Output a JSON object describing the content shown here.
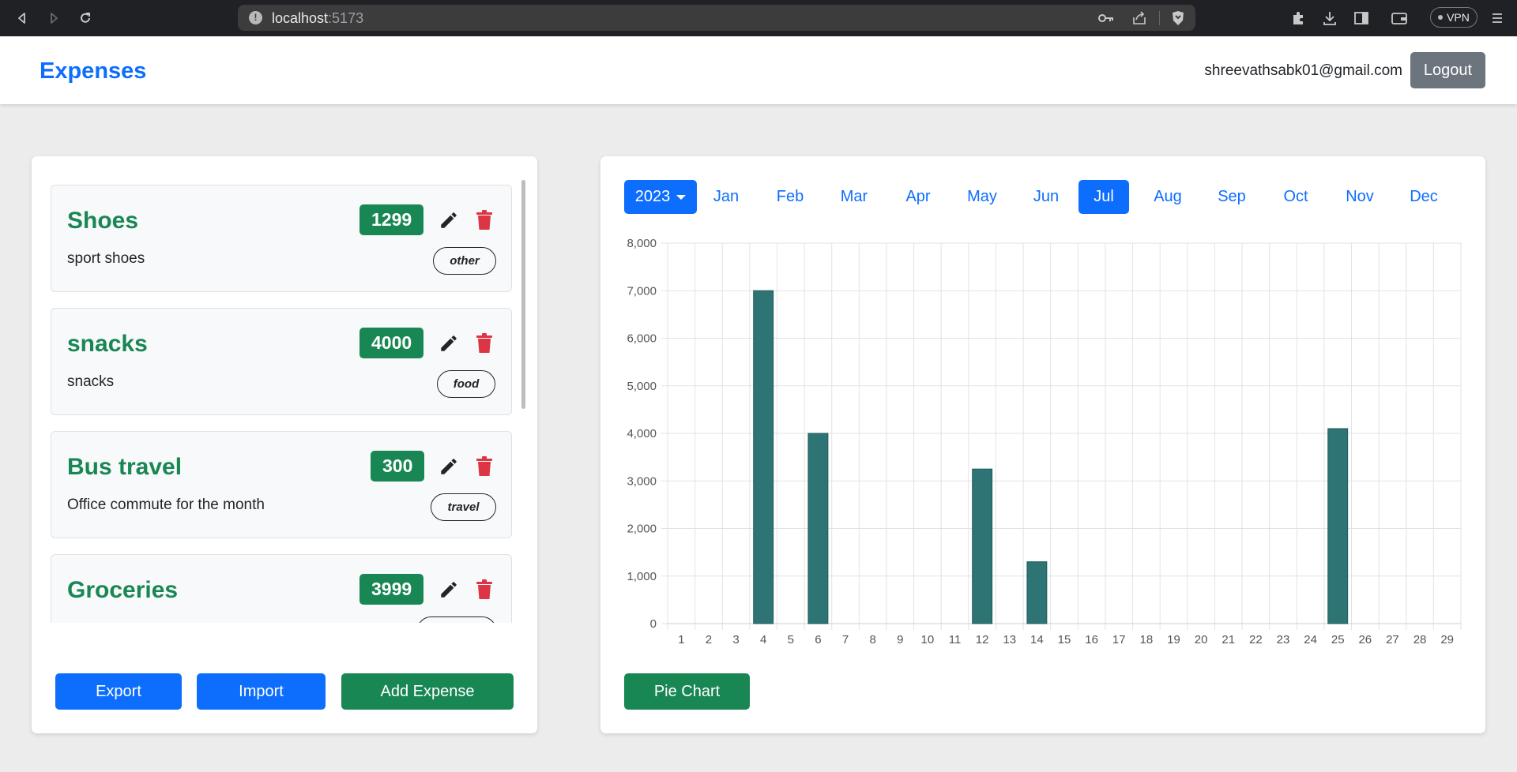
{
  "browser": {
    "url_host": "localhost",
    "url_port": ":5173",
    "vpn_label": "VPN"
  },
  "header": {
    "brand": "Expenses",
    "user_email": "shreevathsabk01@gmail.com",
    "logout_label": "Logout"
  },
  "expenses": [
    {
      "title": "Shoes",
      "description": "sport shoes",
      "amount": "1299",
      "category": "other"
    },
    {
      "title": "snacks",
      "description": "snacks",
      "amount": "4000",
      "category": "food"
    },
    {
      "title": "Bus travel",
      "description": "Office commute for the month",
      "amount": "300",
      "category": "travel"
    },
    {
      "title": "Groceries",
      "description": "",
      "amount": "3999",
      "category": ""
    }
  ],
  "actions": {
    "export_label": "Export",
    "import_label": "Import",
    "add_label": "Add Expense",
    "pie_label": "Pie Chart"
  },
  "period": {
    "year": "2023",
    "months": [
      "Jan",
      "Feb",
      "Mar",
      "Apr",
      "May",
      "Jun",
      "Jul",
      "Aug",
      "Sep",
      "Oct",
      "Nov",
      "Dec"
    ],
    "selected_month": "Jul"
  },
  "colors": {
    "primary": "#0d6efd",
    "success": "#198754",
    "danger": "#dc3545",
    "secondary": "#6c757d",
    "bar": "#2f7474"
  },
  "chart_data": {
    "type": "bar",
    "categories": [
      "1",
      "2",
      "3",
      "4",
      "5",
      "6",
      "7",
      "8",
      "9",
      "10",
      "11",
      "12",
      "13",
      "14",
      "15",
      "16",
      "17",
      "18",
      "19",
      "20",
      "21",
      "22",
      "23",
      "24",
      "25",
      "26",
      "27",
      "28",
      "29"
    ],
    "values": [
      0,
      0,
      0,
      7000,
      0,
      4000,
      0,
      0,
      0,
      0,
      0,
      3250,
      0,
      1300,
      0,
      0,
      0,
      0,
      0,
      0,
      0,
      0,
      0,
      0,
      4100,
      0,
      0,
      0,
      0
    ],
    "ylim": [
      0,
      8000
    ],
    "yticks": [
      "0",
      "1,000",
      "2,000",
      "3,000",
      "4,000",
      "5,000",
      "6,000",
      "7,000",
      "8,000"
    ],
    "grid": true,
    "title": "",
    "xlabel": "",
    "ylabel": ""
  }
}
